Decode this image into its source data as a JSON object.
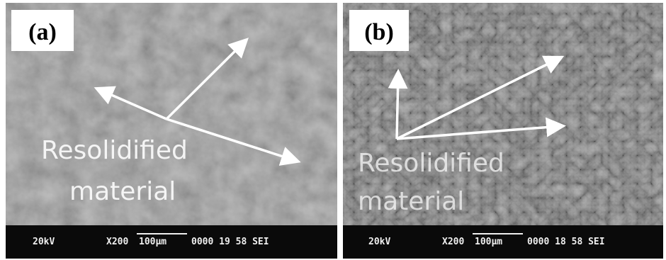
{
  "panels": [
    {
      "label": "(a)",
      "annotation": [
        "Resolidified",
        "material"
      ],
      "info": {
        "voltage": "20kV",
        "magnification": "X200",
        "scale": "100µm",
        "code": "0000 19 58 SEI"
      }
    },
    {
      "label": "(b)",
      "annotation": [
        "Resolidified",
        "material"
      ],
      "info": {
        "voltage": "20kV",
        "magnification": "X200",
        "scale": "100µm",
        "code": "0000 18 58 SEI"
      }
    }
  ]
}
